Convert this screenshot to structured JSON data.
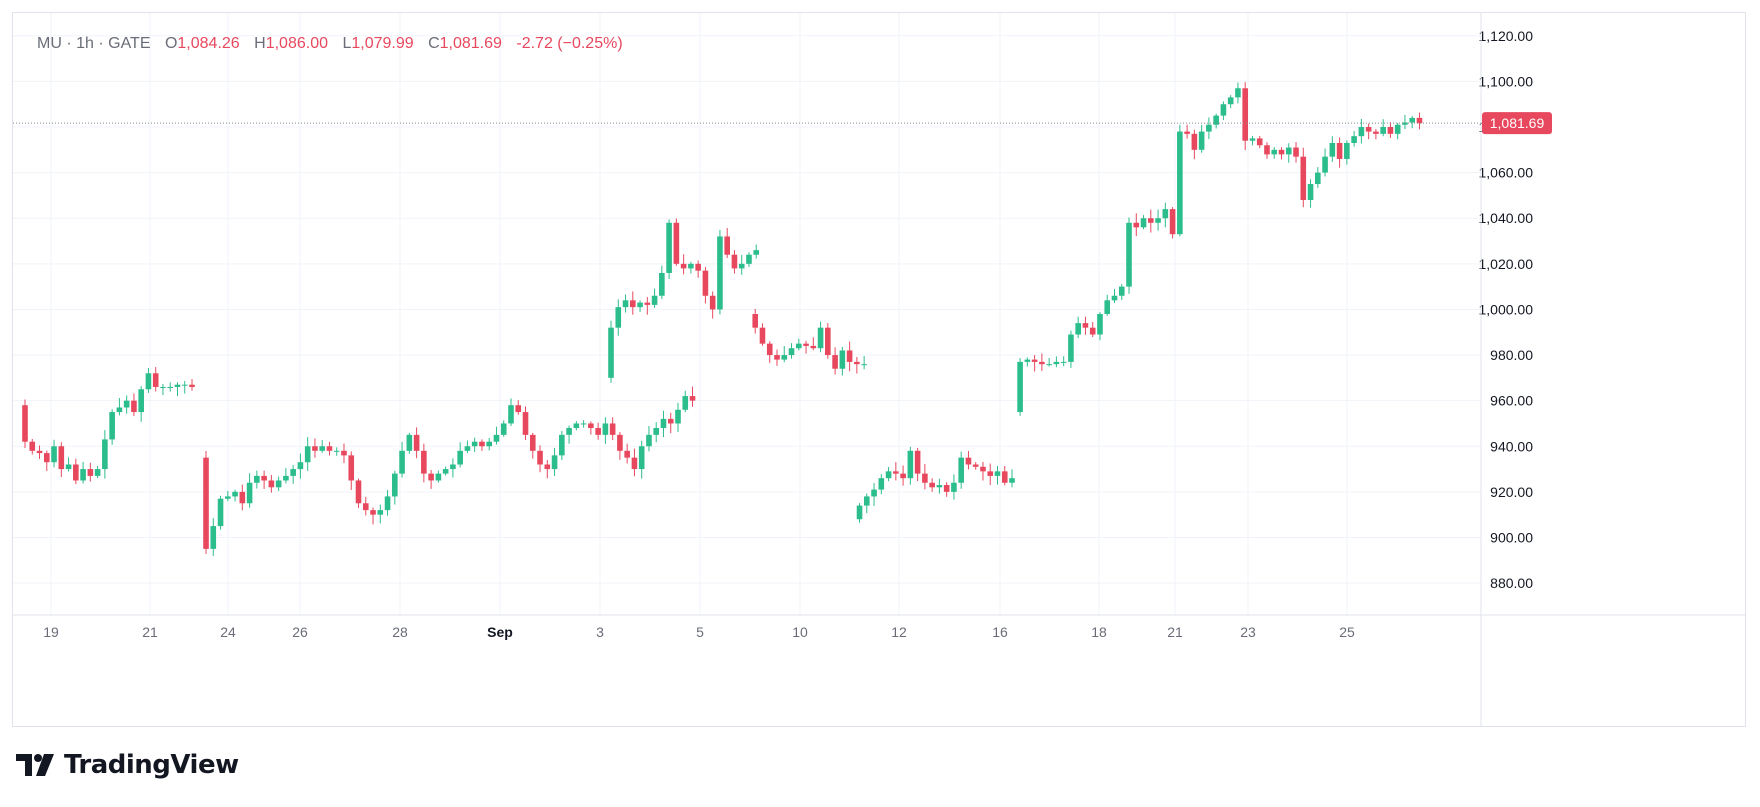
{
  "legend": {
    "symbol": "MU · 1h · GATE",
    "open_label": "O",
    "open": "1,084.26",
    "high_label": "H",
    "high": "1,086.00",
    "low_label": "L",
    "low": "1,079.99",
    "close_label": "C",
    "close": "1,081.69",
    "change": "-2.72 (−0.25%)"
  },
  "branding": {
    "name": "TradingView"
  },
  "colors": {
    "up": "#26a69a",
    "up_body": "#2bbd8c",
    "down": "#e8485e",
    "grid": "#f0f3fa",
    "axis_text": "#6a6d78"
  },
  "chart_data": {
    "type": "candlestick",
    "x_tick_labels": [
      "19",
      "21",
      "24",
      "26",
      "28",
      "Sep",
      "3",
      "5",
      "10",
      "12",
      "16",
      "18",
      "21",
      "23",
      "25"
    ],
    "y_tick_labels": [
      "880.00",
      "900.00",
      "920.00",
      "940.00",
      "960.00",
      "980.00",
      "1,000.00",
      "1,020.00",
      "1,040.00",
      "1,060.00",
      "1,080.00",
      "1,100.00",
      "1,120.00"
    ],
    "ylim": [
      866,
      1130
    ],
    "last_price": 1081.69,
    "last_price_label": "1,081.69",
    "segments": [
      {
        "t0": 0,
        "dt": 0.71,
        "start": 958,
        "points": [
          942,
          938,
          937,
          933,
          940,
          930,
          932,
          925,
          930,
          927,
          930,
          943,
          955,
          957,
          960,
          955,
          965,
          972,
          966,
          966,
          966,
          967,
          967,
          966
        ]
      },
      {
        "t0": 17.7,
        "dt": 0.71,
        "start": 935,
        "points": [
          895,
          905,
          917,
          918,
          920,
          915,
          924,
          927,
          925,
          922,
          925,
          927,
          930,
          933,
          940,
          938,
          940,
          938,
          938,
          936,
          925,
          915,
          912,
          910,
          912,
          918,
          928,
          938,
          945,
          938,
          928,
          925,
          928,
          930,
          932,
          938,
          940,
          942,
          940,
          942,
          945,
          950,
          958,
          955,
          945,
          938,
          932,
          930,
          936,
          945,
          948,
          950,
          950,
          948,
          945,
          950,
          945,
          938,
          935,
          930,
          940,
          945,
          948,
          952,
          950,
          956,
          962,
          960
        ]
      },
      {
        "t0": 57.3,
        "dt": 0.71,
        "start": 970,
        "points": [
          992,
          1001,
          1004,
          1001,
          1003,
          1002,
          1006,
          1016,
          1038,
          1020,
          1018,
          1020,
          1017,
          1006,
          1000,
          1032,
          1024,
          1018,
          1020,
          1024,
          1026
        ]
      },
      {
        "t0": 71.4,
        "dt": 0.71,
        "start": 998,
        "points": [
          992,
          985,
          980,
          978,
          980,
          983,
          985,
          984,
          983,
          992,
          980,
          974,
          982,
          977,
          976,
          976
        ]
      },
      {
        "t0": 81.6,
        "dt": 0.71,
        "start": 908,
        "points": [
          914,
          918,
          921,
          926,
          929,
          928,
          926,
          938,
          928,
          924,
          922,
          923,
          920,
          924,
          935,
          932,
          931,
          929,
          927,
          929,
          924,
          926
        ]
      },
      {
        "t0": 97.3,
        "dt": 0.71,
        "start": 955,
        "points": [
          977,
          978,
          977,
          976,
          976,
          977,
          977,
          989,
          994,
          992,
          989,
          998,
          1004,
          1006,
          1010,
          1038,
          1036,
          1040,
          1038,
          1040,
          1044,
          1033,
          1078,
          1077,
          1070,
          1078,
          1081,
          1085,
          1090,
          1093,
          1097,
          1074,
          1075,
          1072,
          1068,
          1070,
          1068,
          1071,
          1067,
          1048,
          1055,
          1060,
          1067,
          1073,
          1066,
          1073,
          1076,
          1080,
          1078,
          1077,
          1080,
          1077,
          1081,
          1082,
          1084,
          1081.69
        ]
      }
    ]
  }
}
